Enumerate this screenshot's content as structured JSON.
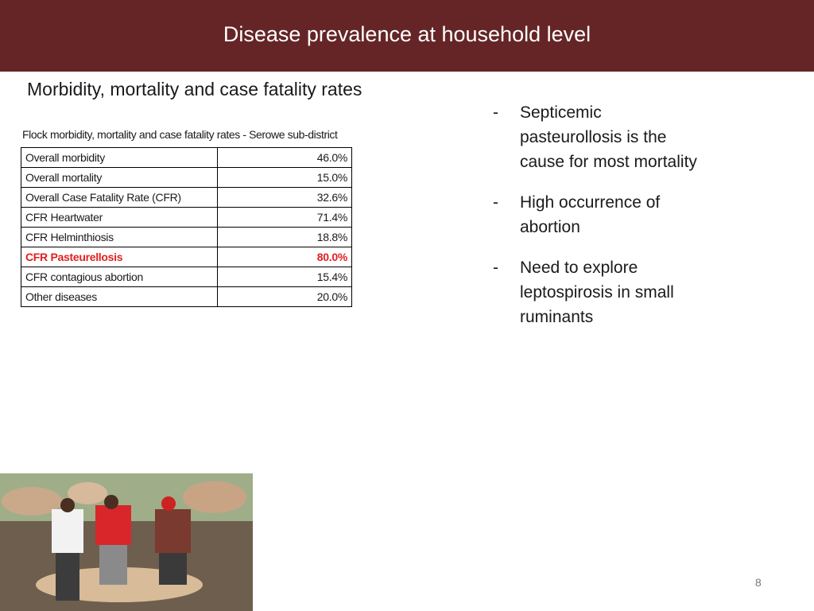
{
  "header": {
    "title": "Disease prevalence at household level"
  },
  "subtitle": "Morbidity, mortality and case fatality rates",
  "table": {
    "caption": "Flock morbidity, mortality and case fatality rates - Serowe sub-district",
    "rows": [
      [
        "Overall morbidity",
        "46.0%"
      ],
      [
        "Overall mortality",
        "15.0%"
      ],
      [
        "Overall Case Fatality Rate (CFR)",
        "32.6%"
      ],
      [
        "CFR Heartwater",
        "71.4%"
      ],
      [
        "CFR Helminthiosis",
        "18.8%"
      ],
      [
        "CFR Pasteurellosis",
        "80.0%"
      ],
      [
        "CFR contagious abortion",
        "15.4%"
      ],
      [
        "Other diseases",
        "20.0%"
      ]
    ],
    "highlight_row": 5,
    "highlight_color": "#e02020"
  },
  "bullets": [
    {
      "marker": "-",
      "text": "Septicemic pasteurollosis is the cause for most mortality"
    },
    {
      "marker": "-",
      "text": "High occurrence of abortion"
    },
    {
      "marker": "-",
      "text": "Need to explore leptospirosis in small ruminants"
    }
  ],
  "page_number": "8"
}
